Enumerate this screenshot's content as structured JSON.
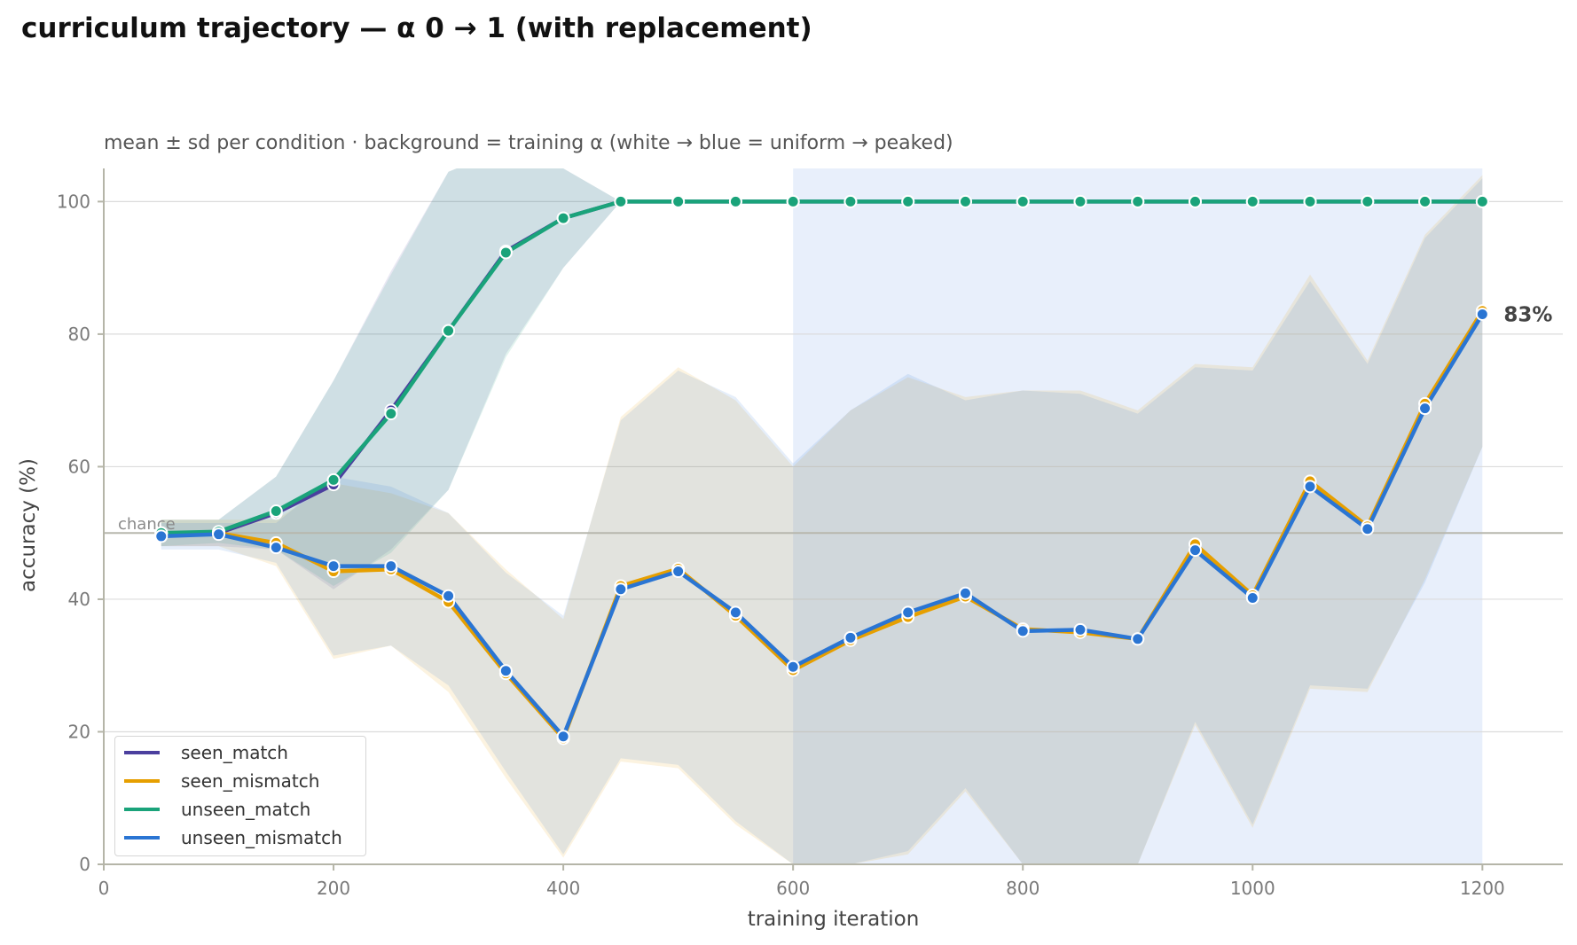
{
  "chart_data": {
    "type": "line",
    "title": "curriculum trajectory — α 0 → 1 (with replacement)",
    "subtitle": "mean ± sd per condition · background = training α (white → blue = uniform → peaked)",
    "xlabel": "training iteration",
    "ylabel": "accuracy (%)",
    "xlim": [
      0,
      1270
    ],
    "ylim": [
      0,
      105
    ],
    "x_ticks": [
      0,
      200,
      400,
      600,
      800,
      1000,
      1200
    ],
    "y_ticks": [
      0,
      20,
      40,
      60,
      80,
      100
    ],
    "grid": "horizontal",
    "legend_position": "lower-left",
    "chance_level": 50,
    "chance_label": "chance",
    "final_annotation": "83%",
    "background_shading": {
      "description_color_low": "#ffffff",
      "description_color_high": "#e8effb",
      "peaked_from": 600,
      "peaked_to": 1200
    },
    "x": [
      50,
      100,
      150,
      200,
      250,
      300,
      350,
      400,
      450,
      500,
      550,
      600,
      650,
      700,
      750,
      800,
      850,
      900,
      950,
      1000,
      1050,
      1100,
      1150,
      1200
    ],
    "series": [
      {
        "name": "seen_match",
        "color": "#4b3f9e",
        "values": [
          50,
          50,
          53,
          57.3,
          68.5,
          80.5,
          92.5,
          97.5,
          100,
          100,
          100,
          100,
          100,
          100,
          100,
          100,
          100,
          100,
          100,
          100,
          100,
          100,
          100,
          100
        ],
        "sd_low": [
          48,
          48,
          47.5,
          41.5,
          47.5,
          56.5,
          77,
          90,
          100,
          100,
          100,
          100,
          100,
          100,
          100,
          100,
          100,
          100,
          100,
          100,
          100,
          100,
          100,
          100
        ],
        "sd_high": [
          52,
          52,
          58.5,
          73,
          89.5,
          104.5,
          108,
          105,
          100,
          100,
          100,
          100,
          100,
          100,
          100,
          100,
          100,
          100,
          100,
          100,
          100,
          100,
          100,
          100
        ]
      },
      {
        "name": "seen_mismatch",
        "color": "#e69f00",
        "values": [
          50,
          50,
          48.5,
          44.2,
          44.5,
          39.6,
          28.8,
          19,
          42,
          44.6,
          37.5,
          29.3,
          33.8,
          37.3,
          40.4,
          35.5,
          35,
          34,
          48.3,
          40.6,
          57.8,
          51,
          69.5,
          83.5
        ],
        "sd_low": [
          48,
          48,
          45,
          31,
          33,
          26,
          13,
          1,
          15.5,
          14.5,
          6,
          0,
          0,
          1.5,
          11,
          0,
          0,
          0,
          21,
          5.5,
          26.5,
          26,
          43,
          63
        ],
        "sd_high": [
          52,
          52,
          52,
          57.5,
          56,
          53,
          44.5,
          37,
          67.5,
          75,
          70,
          60,
          68.5,
          73.5,
          70.5,
          71.5,
          71.5,
          68.5,
          75.5,
          75,
          89,
          76,
          95,
          104
        ]
      },
      {
        "name": "unseen_match",
        "color": "#1aa37a",
        "values": [
          50,
          50.2,
          53.3,
          58,
          68,
          80.5,
          92.3,
          97.5,
          100,
          100,
          100,
          100,
          100,
          100,
          100,
          100,
          100,
          100,
          100,
          100,
          100,
          100,
          100,
          100
        ],
        "sd_low": [
          48,
          48.5,
          47.5,
          42,
          47,
          56.5,
          76.5,
          90,
          100,
          100,
          100,
          100,
          100,
          100,
          100,
          100,
          100,
          100,
          100,
          100,
          100,
          100,
          100,
          100
        ],
        "sd_high": [
          52,
          52,
          58.5,
          73,
          89,
          104.5,
          108,
          105,
          100,
          100,
          100,
          100,
          100,
          100,
          100,
          100,
          100,
          100,
          100,
          100,
          100,
          100,
          100,
          100
        ]
      },
      {
        "name": "unseen_mismatch",
        "color": "#2a75d3",
        "values": [
          49.5,
          49.8,
          47.8,
          45,
          45,
          40.5,
          29.2,
          19.3,
          41.5,
          44.2,
          38,
          29.8,
          34.2,
          38,
          40.9,
          35.2,
          35.4,
          34,
          47.4,
          40.2,
          57,
          50.6,
          68.8,
          83
        ],
        "sd_low": [
          47.5,
          47.5,
          45.5,
          31.5,
          33,
          27,
          14,
          1.5,
          16,
          15,
          6.5,
          0,
          0,
          2,
          11.5,
          0,
          0,
          0,
          21.5,
          6,
          27,
          26.5,
          42.5,
          63
        ],
        "sd_high": [
          51.5,
          51.5,
          51.5,
          58.5,
          57,
          53,
          44,
          37.5,
          67,
          74.5,
          70.5,
          60.5,
          68.5,
          74,
          70,
          71.5,
          71,
          68,
          75,
          74.5,
          88,
          75.5,
          94.5,
          103.5
        ]
      }
    ]
  }
}
